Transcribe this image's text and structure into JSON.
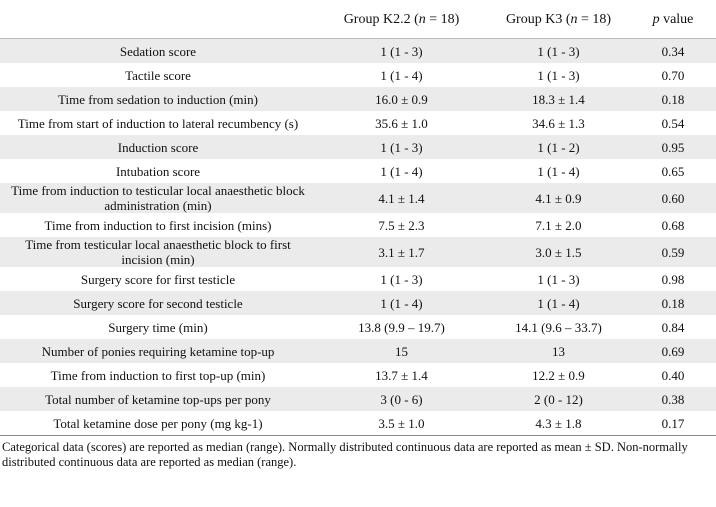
{
  "table": {
    "header": [
      [],
      [
        "Group K2.2 (",
        "n",
        " = 18)"
      ],
      [
        "Group K3 (",
        "n",
        " = 18)"
      ],
      [
        "p",
        " value"
      ]
    ],
    "rows": [
      [
        "Sedation score",
        "1 (1 - 3)",
        "1 (1 - 3)",
        "0.34"
      ],
      [
        "Tactile score",
        "1 (1 - 4)",
        "1 (1 - 3)",
        "0.70"
      ],
      [
        "Time from sedation to induction (min)",
        "16.0 ± 0.9",
        "18.3 ± 1.4",
        "0.18"
      ],
      [
        "Time from start of induction to lateral recumbency (s)",
        "35.6 ± 1.0",
        "34.6 ± 1.3",
        "0.54"
      ],
      [
        "Induction score",
        "1 (1 - 3)",
        "1 (1 - 2)",
        "0.95"
      ],
      [
        "Intubation score",
        "1 (1 - 4)",
        "1 (1 - 4)",
        "0.65"
      ],
      [
        "Time from induction to testicular local anaesthetic block administration (min)",
        "4.1 ± 1.4",
        "4.1 ± 0.9",
        "0.60"
      ],
      [
        "Time from induction to first incision (mins)",
        "7.5 ± 2.3",
        "7.1 ± 2.0",
        "0.68"
      ],
      [
        "Time from testicular local anaesthetic block to first incision (min)",
        "3.1 ± 1.7",
        "3.0 ± 1.5",
        "0.59"
      ],
      [
        "Surgery score for first testicle",
        "1 (1 - 3)",
        "1 (1 - 3)",
        "0.98"
      ],
      [
        "Surgery score for second testicle",
        "1 (1 - 4)",
        "1 (1 - 4)",
        "0.18"
      ],
      [
        "Surgery time (min)",
        "13.8 (9.9 – 19.7)",
        "14.1 (9.6 – 33.7)",
        "0.84"
      ],
      [
        "Number of ponies requiring ketamine top-up",
        "15",
        "13",
        "0.69"
      ],
      [
        "Time from induction to first top-up (min)",
        "13.7 ± 1.4",
        "12.2 ± 0.9",
        "0.40"
      ],
      [
        "Total number of ketamine top-ups per pony",
        "3 (0 - 6)",
        "2 (0 - 12)",
        "0.38"
      ],
      [
        "Total ketamine dose per pony (mg kg-1)",
        "3.5 ± 1.0",
        "4.3 ± 1.8",
        "0.17"
      ]
    ],
    "footnote": "Categorical data (scores) are reported as median (range). Normally distributed continuous data are reported as mean ± SD.  Non-normally distributed continuous data are reported as median (range)."
  }
}
